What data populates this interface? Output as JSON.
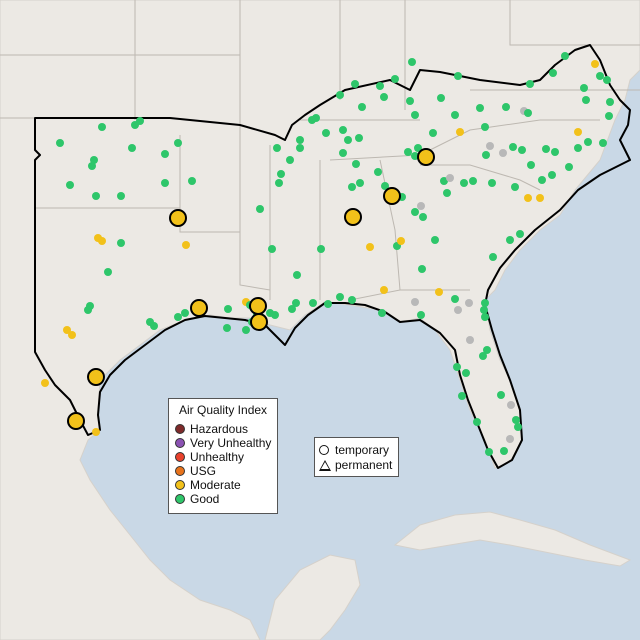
{
  "legend": {
    "title": "Air Quality Index",
    "categories": [
      {
        "label": "Hazardous",
        "color": "#7e2a2a"
      },
      {
        "label": "Very Unhealthy",
        "color": "#8b52b3"
      },
      {
        "label": "Unhealthy",
        "color": "#e8412c"
      },
      {
        "label": "USG",
        "color": "#e8731c"
      },
      {
        "label": "Moderate",
        "color": "#f2c11a"
      },
      {
        "label": "Good",
        "color": "#2ec66a"
      }
    ]
  },
  "monitor_types": {
    "temporary": "temporary",
    "permanent": "permanent"
  },
  "colors": {
    "water": "#c9d8e6",
    "land": "#ece9e4",
    "no_data": "#b8b8b8",
    "highlight_outline": "#000000"
  }
}
